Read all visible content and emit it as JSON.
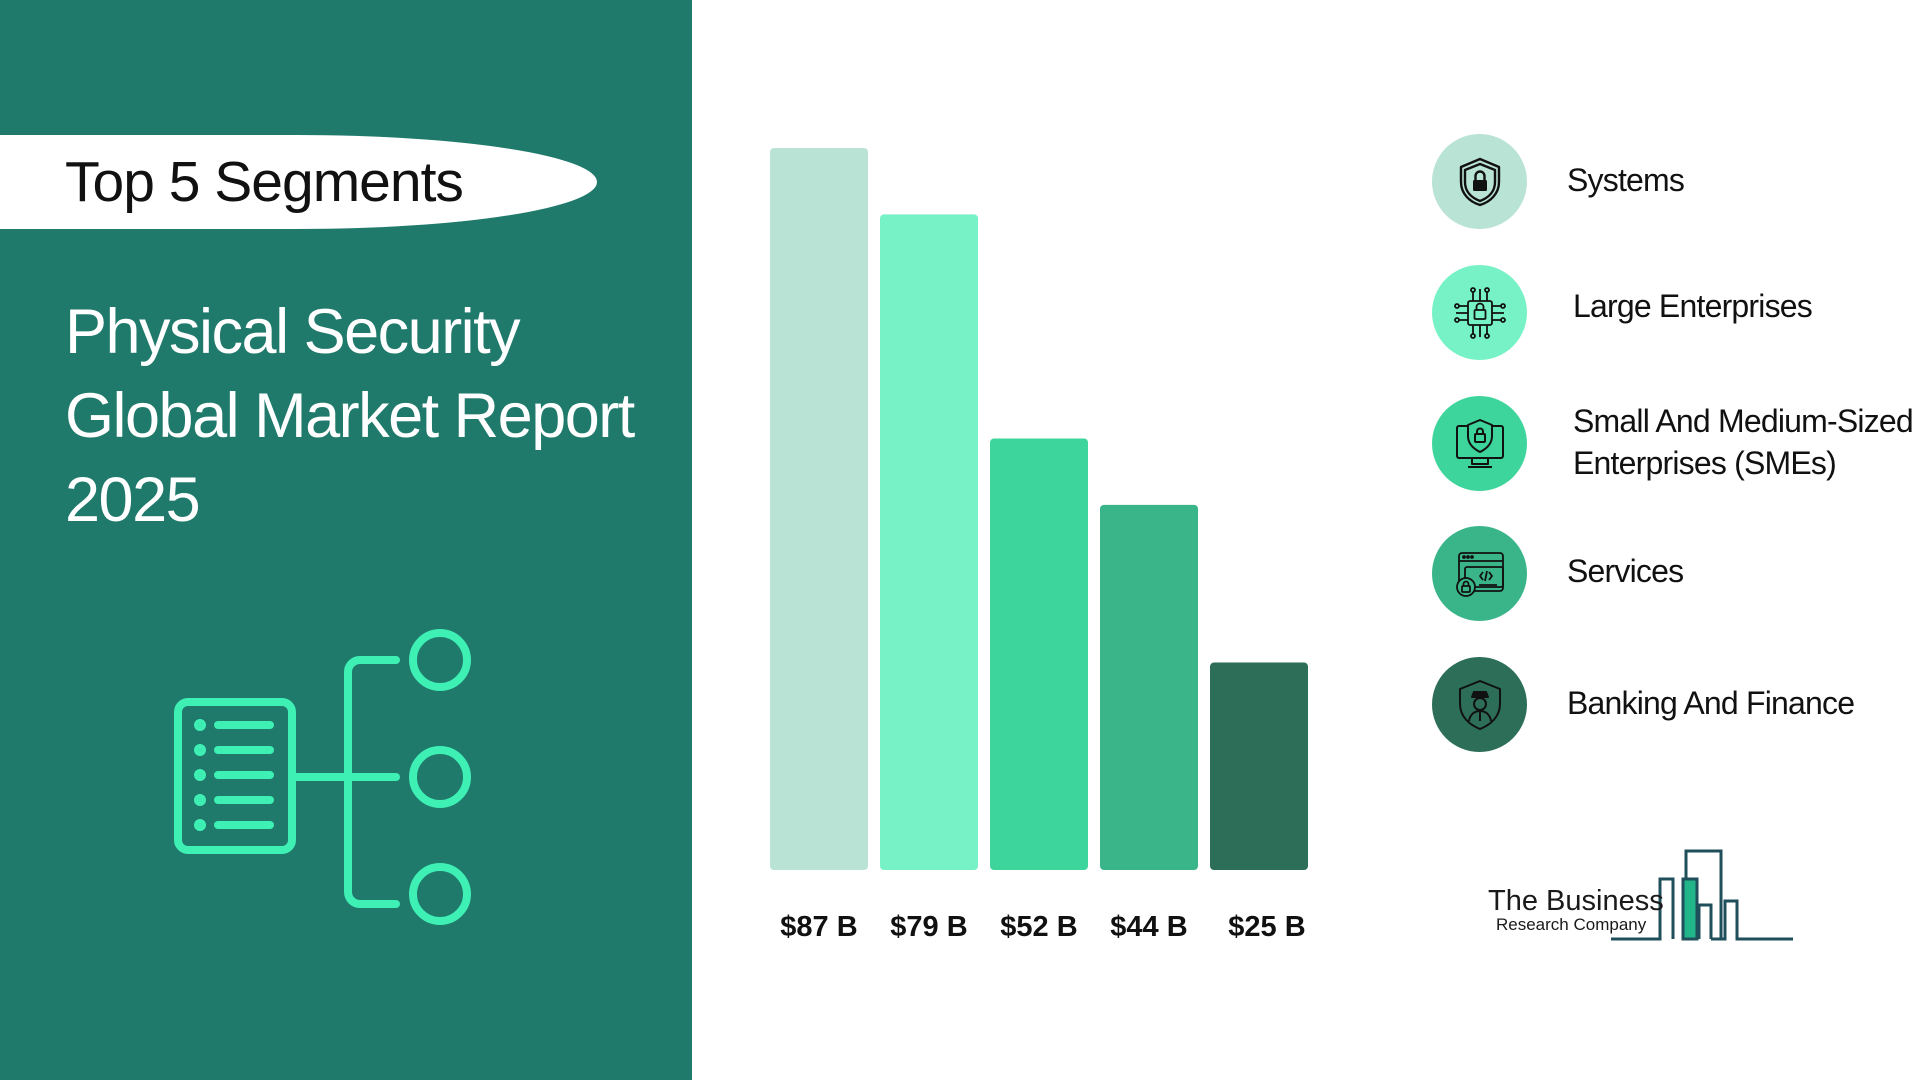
{
  "header": {
    "pill_text": "Top 5 Segments",
    "title_lines": [
      "Physical Security",
      "Global Market Report",
      "2025"
    ]
  },
  "chart_data": {
    "type": "bar",
    "categories": [
      "Systems",
      "Large Enterprises",
      "Small And Medium-Sized Enterprises (SMEs)",
      "Services",
      "Banking And Finance"
    ],
    "values": [
      87,
      79,
      52,
      44,
      25
    ],
    "value_labels": [
      "$87 B",
      "$79 B",
      "$52 B",
      "$44 B",
      "$25 B"
    ],
    "unit": "B",
    "ylim": [
      0,
      87
    ],
    "colors": [
      "#b9e3d4",
      "#77f2c6",
      "#3ed59c",
      "#3ab58a",
      "#2c6e58"
    ],
    "grid": false,
    "legend": "right"
  },
  "legend": {
    "items": [
      {
        "label_lines": [
          "Systems"
        ],
        "icon": "shield-lock-icon",
        "color": "#b9e3d4"
      },
      {
        "label_lines": [
          "Large Enterprises"
        ],
        "icon": "circuit-lock-icon",
        "color": "#77f2c6"
      },
      {
        "label_lines": [
          "Small And Medium-Sized",
          "Enterprises (SMEs)"
        ],
        "icon": "monitor-shield-icon",
        "color": "#3ed59c"
      },
      {
        "label_lines": [
          "Services"
        ],
        "icon": "code-window-lock-icon",
        "color": "#3ab58a"
      },
      {
        "label_lines": [
          "Banking And Finance"
        ],
        "icon": "guard-shield-icon",
        "color": "#2c6e58"
      }
    ]
  },
  "logo": {
    "line1": "The Business",
    "line2": "Research Company"
  },
  "colors": {
    "panel": "#1f7a6c",
    "tree_icon": "#3ef0b4"
  }
}
